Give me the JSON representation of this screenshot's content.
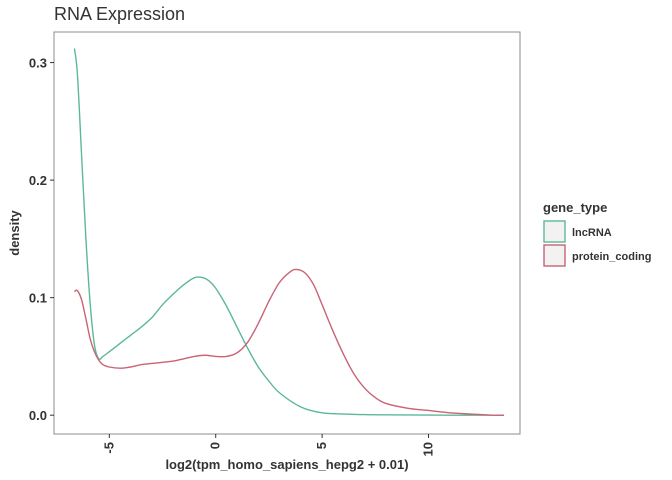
{
  "chart_data": {
    "type": "line",
    "title": "RNA Expression",
    "xlabel": "log2(tpm_homo_sapiens_hepg2 + 0.01)",
    "ylabel": "density",
    "xlim": [
      -7.6,
      14.3
    ],
    "ylim": [
      -0.016,
      0.326
    ],
    "x_ticks": [
      -5,
      0,
      5,
      10
    ],
    "x_tick_labels": [
      "-5",
      "0",
      "5",
      "10"
    ],
    "y_ticks": [
      0.0,
      0.1,
      0.2,
      0.3
    ],
    "y_tick_labels": [
      "0.0",
      "0.1",
      "0.2",
      "0.3"
    ],
    "grid": false,
    "legend": {
      "title": "gene_type",
      "position": "right"
    },
    "series": [
      {
        "name": "lncRNA",
        "color": "#5cb899",
        "x": [
          -6.64,
          -6.5,
          -6.3,
          -6.1,
          -5.9,
          -5.7,
          -5.5,
          -5.3,
          -5.0,
          -4.5,
          -4.0,
          -3.5,
          -3.0,
          -2.5,
          -2.0,
          -1.5,
          -1.0,
          -0.6,
          -0.3,
          0.0,
          0.5,
          1.0,
          1.5,
          2.0,
          2.5,
          3.0,
          4.0,
          5.0,
          6.0,
          7.0,
          8.0,
          9.0,
          10.0,
          11.0,
          12.0,
          13.0,
          13.55
        ],
        "y": [
          0.312,
          0.29,
          0.22,
          0.15,
          0.095,
          0.06,
          0.048,
          0.05,
          0.054,
          0.061,
          0.068,
          0.075,
          0.083,
          0.094,
          0.103,
          0.111,
          0.117,
          0.117,
          0.114,
          0.108,
          0.093,
          0.075,
          0.057,
          0.041,
          0.029,
          0.019,
          0.007,
          0.002,
          0.001,
          0.0005,
          0.0003,
          0.0002,
          0.0001,
          0.0,
          0.0,
          0.0,
          0.0
        ]
      },
      {
        "name": "protein_coding",
        "color": "#c86475",
        "x": [
          -6.64,
          -6.5,
          -6.3,
          -6.1,
          -5.9,
          -5.7,
          -5.5,
          -5.3,
          -5.0,
          -4.5,
          -4.0,
          -3.5,
          -3.0,
          -2.5,
          -2.0,
          -1.5,
          -1.0,
          -0.5,
          0.0,
          0.5,
          1.0,
          1.5,
          2.0,
          2.5,
          3.0,
          3.5,
          3.8,
          4.2,
          4.6,
          5.0,
          5.5,
          6.0,
          6.5,
          7.0,
          7.5,
          8.0,
          9.0,
          10.0,
          11.0,
          12.0,
          13.0,
          13.55
        ],
        "y": [
          0.105,
          0.106,
          0.098,
          0.082,
          0.065,
          0.054,
          0.047,
          0.043,
          0.041,
          0.04,
          0.041,
          0.043,
          0.044,
          0.045,
          0.046,
          0.048,
          0.05,
          0.051,
          0.05,
          0.05,
          0.053,
          0.062,
          0.078,
          0.097,
          0.113,
          0.122,
          0.124,
          0.121,
          0.111,
          0.094,
          0.072,
          0.052,
          0.035,
          0.023,
          0.015,
          0.01,
          0.006,
          0.004,
          0.002,
          0.001,
          0.0,
          0.0
        ]
      }
    ]
  }
}
